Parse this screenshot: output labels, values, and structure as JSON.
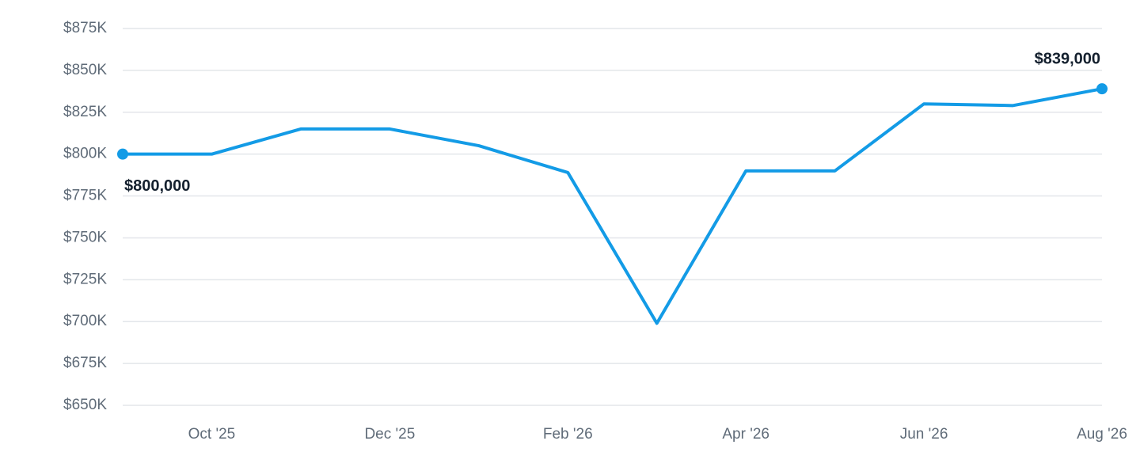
{
  "chart_data": {
    "type": "line",
    "categories": [
      null,
      "Oct '25",
      null,
      "Dec '25",
      null,
      "Feb '26",
      null,
      "Apr '26",
      null,
      "Jun '26",
      null,
      "Aug '26"
    ],
    "values": [
      800000,
      800000,
      815000,
      815000,
      805000,
      789000,
      699000,
      790000,
      790000,
      830000,
      829000,
      839000
    ],
    "value_labels": [
      "$800,000",
      null,
      null,
      null,
      null,
      null,
      null,
      null,
      null,
      null,
      null,
      "$839,000"
    ],
    "color": "#139be6",
    "ylim": [
      650000,
      875000
    ],
    "yticks": [
      {
        "value": 650000,
        "label": "$650K"
      },
      {
        "value": 675000,
        "label": "$675K"
      },
      {
        "value": 700000,
        "label": "$700K"
      },
      {
        "value": 725000,
        "label": "$725K"
      },
      {
        "value": 750000,
        "label": "$750K"
      },
      {
        "value": 775000,
        "label": "$775K"
      },
      {
        "value": 800000,
        "label": "$800K"
      },
      {
        "value": 825000,
        "label": "$825K"
      },
      {
        "value": 850000,
        "label": "$850K"
      },
      {
        "value": 875000,
        "label": "$875K"
      }
    ],
    "grid": true
  }
}
